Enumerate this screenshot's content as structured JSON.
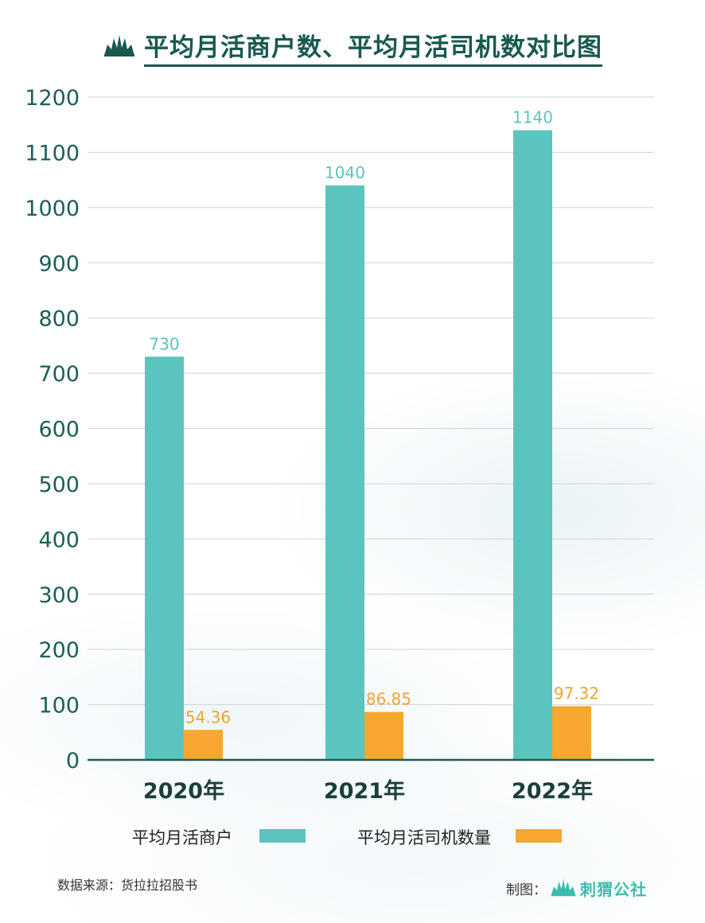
{
  "header": {
    "title": "平均月活商户数、平均月活司机数对比图",
    "logo_icon": "leaf-crown-icon"
  },
  "chart_data": {
    "type": "bar",
    "title": "平均月活商户数、平均月活司机数对比图",
    "categories": [
      "2020年",
      "2021年",
      "2022年"
    ],
    "series": [
      {
        "name": "平均月活商户",
        "values": [
          730,
          1040,
          1140
        ],
        "labels": [
          "730",
          "1040",
          "1140"
        ],
        "color": "#5cc4be"
      },
      {
        "name": "平均月活司机数量",
        "values": [
          54.36,
          86.85,
          97.32
        ],
        "labels": [
          "54.36",
          "86.85",
          "97.32"
        ],
        "color": "#f6a72f"
      }
    ],
    "ylim": [
      0,
      1200
    ],
    "yticks": [
      "0",
      "100",
      "200",
      "300",
      "400",
      "500",
      "600",
      "700",
      "800",
      "900",
      "1000",
      "1100",
      "1200"
    ],
    "grid": true,
    "legend_position": "bottom"
  },
  "footer": {
    "source": "数据来源：货拉拉招股书",
    "credit_label": "制图：",
    "brand_name": "刺猬公社",
    "brand_icon": "leaf-crown-icon"
  }
}
